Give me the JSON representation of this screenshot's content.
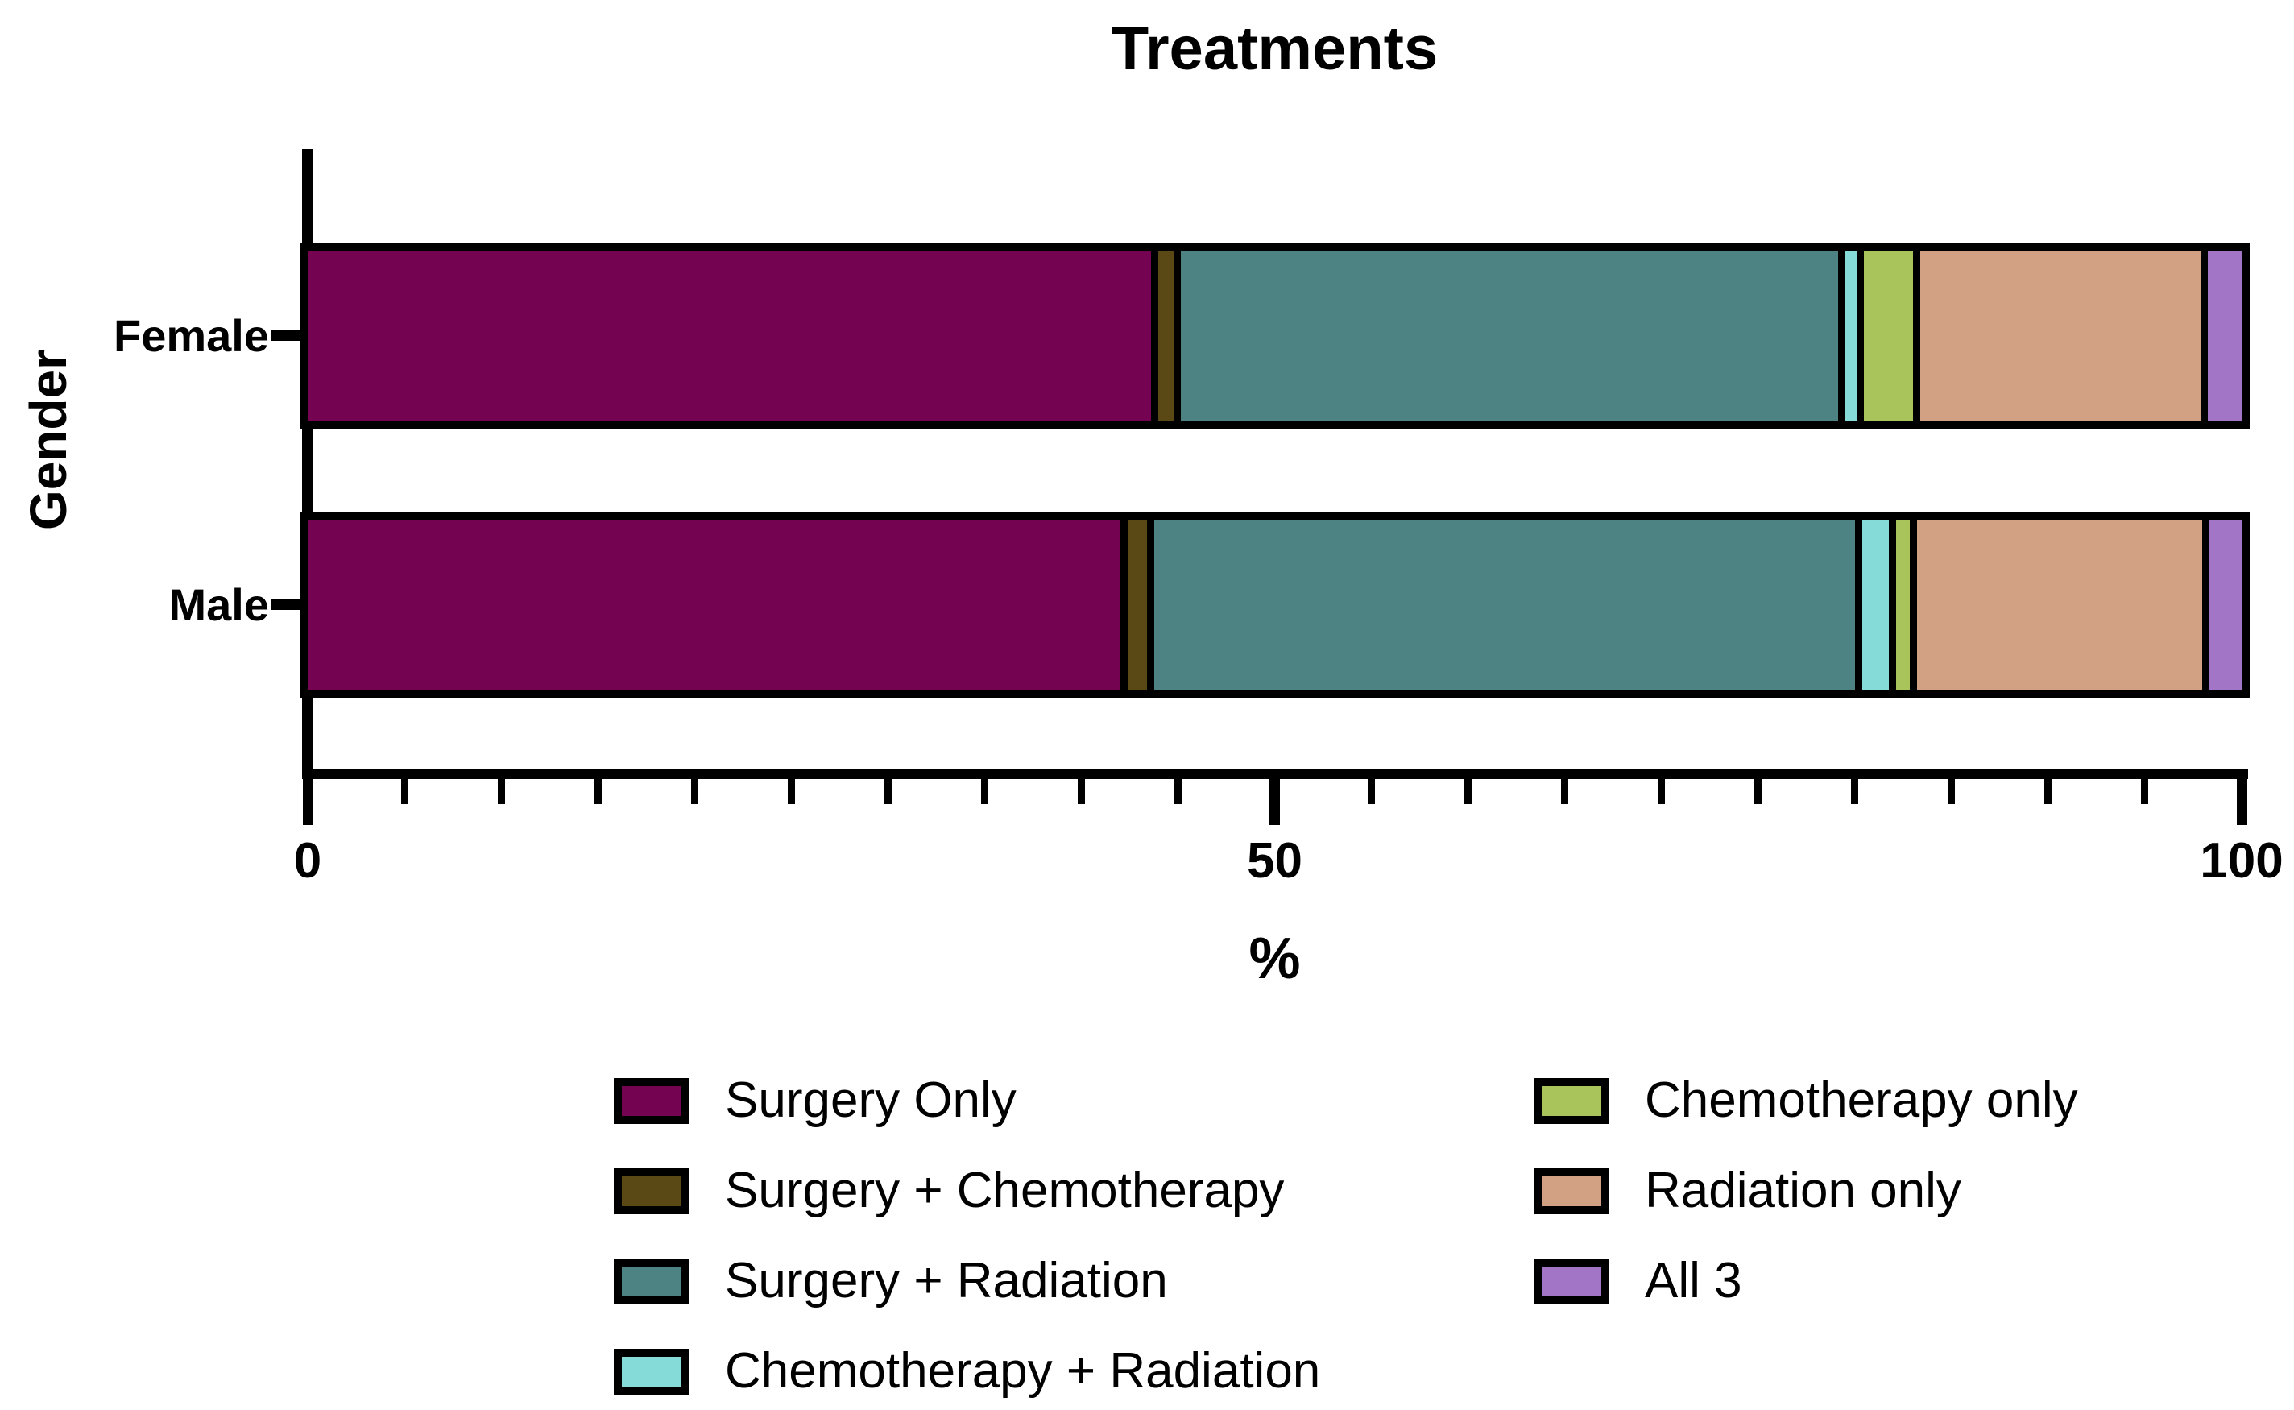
{
  "chart_data": {
    "type": "bar",
    "orientation": "horizontal",
    "stacked": true,
    "title": "Treatments",
    "xlabel": "%",
    "ylabel": "Gender",
    "xlim": [
      0,
      100
    ],
    "x_major_ticks": [
      0,
      50,
      100
    ],
    "x_minor_tick_step": 5,
    "grid": false,
    "categories": [
      "Female",
      "Male"
    ],
    "series": [
      {
        "name": "Surgery Only",
        "color": "#740351",
        "values": [
          44.6,
          43.0
        ]
      },
      {
        "name": "Surgery + Chemotherapy",
        "color": "#5A4915",
        "values": [
          0.8,
          1.0
        ]
      },
      {
        "name": "Surgery + Radiation",
        "color": "#4D8382",
        "values": [
          34.8,
          37.1
        ]
      },
      {
        "name": "Chemotherapy + Radiation",
        "color": "#85DBD8",
        "values": [
          0.6,
          1.4
        ]
      },
      {
        "name": "Chemotherapy only",
        "color": "#A9C45B",
        "values": [
          2.6,
          0.7
        ]
      },
      {
        "name": "Radiation only",
        "color": "#D2A083",
        "values": [
          14.8,
          15.1
        ]
      },
      {
        "name": "All 3",
        "color": "#A375C7",
        "values": [
          1.8,
          1.7
        ]
      }
    ],
    "legend": {
      "position": "bottom",
      "columns": [
        [
          "Surgery Only",
          "Surgery + Chemotherapy",
          "Surgery + Radiation",
          "Chemotherapy + Radiation"
        ],
        [
          "Chemotherapy only",
          "Radiation only",
          "All 3"
        ]
      ]
    },
    "axis_color": "#000000",
    "bar_outline_color": "#000000"
  }
}
